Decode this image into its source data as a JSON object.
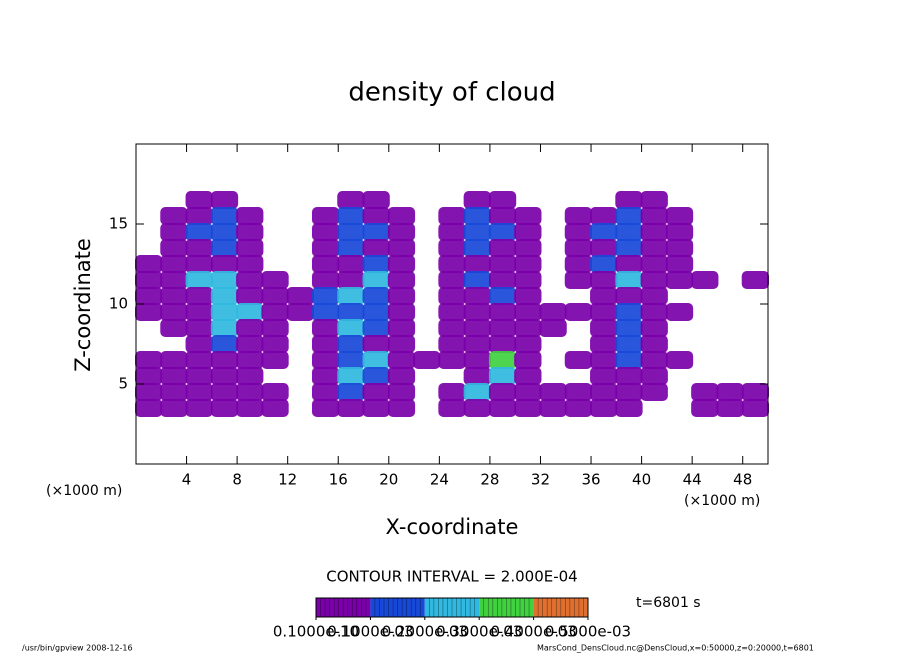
{
  "chart_data": {
    "type": "contour",
    "title": "density of cloud",
    "x_label": "X-coordinate",
    "y_label": "Z-coordinate",
    "x_unit": "(×1000 m)",
    "y_unit": "(×1000 m)",
    "interval_text": "CONTOUR INTERVAL = 2.000E-04",
    "time_text": "t=6801 s",
    "footer_left": "/usr/bin/gpview  2008-12-16",
    "footer_right": "MarsCond_DensCloud.nc@DensCloud,x=0:50000,z=0:20000,t=6801",
    "xlim": [
      0,
      50
    ],
    "ylim": [
      0,
      20
    ],
    "xticks": [
      4,
      8,
      12,
      16,
      20,
      24,
      28,
      32,
      36,
      40,
      44,
      48
    ],
    "yticks": [
      5,
      10,
      15
    ],
    "x": [
      1,
      3,
      5,
      7,
      9,
      11,
      13,
      15,
      17,
      19,
      21,
      23,
      25,
      27,
      29,
      31,
      33,
      35,
      37,
      39,
      41,
      43,
      45,
      47,
      49
    ],
    "y": [
      16.5,
      15.5,
      14.5,
      13.5,
      12.5,
      11.5,
      10.5,
      9.5,
      8.5,
      7.5,
      6.5,
      5.5,
      4.5,
      3.5
    ],
    "z": [
      [
        0,
        0,
        5e-05,
        5e-05,
        0,
        0,
        0,
        0,
        5e-05,
        5e-05,
        0,
        0,
        0,
        5e-05,
        5e-05,
        0,
        0,
        0,
        0,
        5e-05,
        5e-05,
        0,
        0,
        0,
        0
      ],
      [
        0,
        5e-05,
        5e-05,
        0.0001,
        5e-05,
        0,
        0,
        5e-05,
        0.0001,
        5e-05,
        5e-05,
        0,
        5e-05,
        0.0001,
        5e-05,
        5e-05,
        0,
        5e-05,
        5e-05,
        0.0001,
        5e-05,
        5e-05,
        0,
        0,
        0
      ],
      [
        0,
        5e-05,
        0.0001,
        0.0001,
        5e-05,
        0,
        0,
        5e-05,
        0.0001,
        0.0001,
        5e-05,
        0,
        5e-05,
        0.0001,
        0.0001,
        5e-05,
        0,
        5e-05,
        0.0001,
        0.0001,
        5e-05,
        5e-05,
        0,
        0,
        0
      ],
      [
        0,
        5e-05,
        5e-05,
        0.0001,
        5e-05,
        0,
        0,
        5e-05,
        0.0001,
        5e-05,
        5e-05,
        0,
        5e-05,
        0.0001,
        5e-05,
        5e-05,
        0,
        5e-05,
        5e-05,
        0.0001,
        5e-05,
        5e-05,
        0,
        0,
        0
      ],
      [
        5e-05,
        5e-05,
        5e-05,
        5e-05,
        5e-05,
        0,
        0,
        5e-05,
        5e-05,
        0.0001,
        5e-05,
        0,
        5e-05,
        5e-05,
        5e-05,
        5e-05,
        0,
        5e-05,
        0.0001,
        5e-05,
        5e-05,
        5e-05,
        0,
        0,
        0
      ],
      [
        5e-05,
        5e-05,
        0.0002,
        0.0002,
        5e-05,
        5e-05,
        0,
        5e-05,
        5e-05,
        0.0002,
        5e-05,
        0,
        5e-05,
        0.0001,
        5e-05,
        5e-05,
        0,
        5e-05,
        5e-05,
        0.0002,
        5e-05,
        5e-05,
        5e-05,
        0,
        5e-05
      ],
      [
        5e-05,
        5e-05,
        5e-05,
        0.0002,
        5e-05,
        5e-05,
        5e-05,
        0.0001,
        0.0002,
        0.0001,
        5e-05,
        0,
        5e-05,
        5e-05,
        0.0001,
        5e-05,
        0,
        0,
        5e-05,
        5e-05,
        5e-05,
        0,
        0,
        0,
        0
      ],
      [
        5e-05,
        5e-05,
        5e-05,
        0.0002,
        0.0002,
        5e-05,
        5e-05,
        0.0001,
        0.0001,
        0.0001,
        5e-05,
        0,
        5e-05,
        5e-05,
        5e-05,
        5e-05,
        5e-05,
        5e-05,
        5e-05,
        0.0001,
        5e-05,
        5e-05,
        0,
        0,
        0
      ],
      [
        0,
        5e-05,
        5e-05,
        0.0002,
        5e-05,
        5e-05,
        0,
        5e-05,
        0.0002,
        0.0001,
        5e-05,
        0,
        5e-05,
        5e-05,
        5e-05,
        5e-05,
        5e-05,
        0,
        5e-05,
        0.0001,
        5e-05,
        0,
        0,
        0,
        0
      ],
      [
        0,
        0,
        5e-05,
        0.0001,
        5e-05,
        5e-05,
        0,
        5e-05,
        0.0001,
        5e-05,
        5e-05,
        0,
        5e-05,
        5e-05,
        5e-05,
        5e-05,
        0,
        0,
        5e-05,
        0.0001,
        5e-05,
        0,
        0,
        0,
        0
      ],
      [
        5e-05,
        5e-05,
        5e-05,
        5e-05,
        5e-05,
        5e-05,
        0,
        5e-05,
        0.0001,
        0.0002,
        5e-05,
        5e-05,
        5e-05,
        5e-05,
        0.0003,
        5e-05,
        0,
        5e-05,
        5e-05,
        0.0001,
        5e-05,
        5e-05,
        0,
        0,
        0
      ],
      [
        5e-05,
        5e-05,
        5e-05,
        5e-05,
        5e-05,
        0,
        0,
        5e-05,
        0.0002,
        0.0001,
        5e-05,
        0,
        0,
        5e-05,
        0.0002,
        5e-05,
        0,
        0,
        5e-05,
        5e-05,
        5e-05,
        0,
        0,
        0,
        0
      ],
      [
        5e-05,
        5e-05,
        5e-05,
        5e-05,
        5e-05,
        5e-05,
        0,
        5e-05,
        0.0001,
        5e-05,
        5e-05,
        0,
        5e-05,
        0.0002,
        5e-05,
        5e-05,
        5e-05,
        5e-05,
        5e-05,
        5e-05,
        5e-05,
        0,
        5e-05,
        5e-05,
        5e-05
      ],
      [
        5e-05,
        5e-05,
        5e-05,
        5e-05,
        5e-05,
        5e-05,
        0,
        5e-05,
        5e-05,
        5e-05,
        5e-05,
        0,
        5e-05,
        5e-05,
        5e-05,
        5e-05,
        5e-05,
        5e-05,
        5e-05,
        5e-05,
        0,
        0,
        5e-05,
        5e-05,
        5e-05
      ]
    ],
    "levels": [
      {
        "value": 1e-11,
        "label": "0.1000e-10"
      },
      {
        "value": 0.0001,
        "label": "0.1000e-03"
      },
      {
        "value": 0.0002,
        "label": "0.2000e-03"
      },
      {
        "value": 0.0003,
        "label": "0.3000e-03"
      },
      {
        "value": 0.0004,
        "label": "0.4000e-03"
      },
      {
        "value": 0.0005,
        "label": "0.5000e-03"
      }
    ],
    "colors": [
      "#7a00a8",
      "#1848d8",
      "#30b8e0",
      "#40d040",
      "#e07030"
    ]
  }
}
